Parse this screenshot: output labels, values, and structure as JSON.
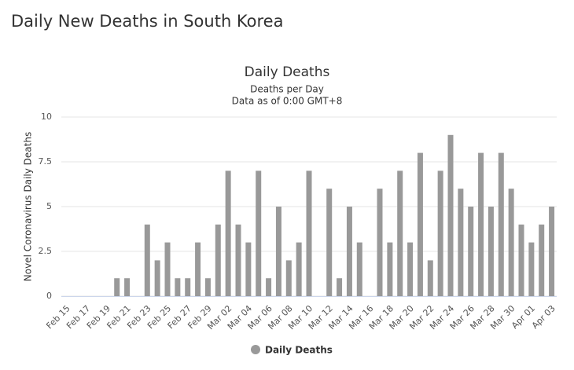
{
  "heading": "Daily New Deaths in South Korea",
  "chart_data": {
    "type": "bar",
    "title": "Daily Deaths",
    "subtitle": "Deaths per Day",
    "note": "Data as of 0:00 GMT+8",
    "y_label": "Novel Coronavirus Daily Deaths",
    "categories": [
      "Feb 15",
      null,
      "Feb 17",
      null,
      "Feb 19",
      null,
      "Feb 21",
      null,
      "Feb 23",
      null,
      "Feb 25",
      null,
      "Feb 27",
      null,
      "Feb 29",
      null,
      "Mar 02",
      null,
      "Mar 04",
      null,
      "Mar 06",
      null,
      "Mar 08",
      null,
      "Mar 10",
      null,
      "Mar 12",
      null,
      "Mar 14",
      null,
      "Mar 16",
      null,
      "Mar 18",
      null,
      "Mar 20",
      null,
      "Mar 22",
      null,
      "Mar 24",
      null,
      "Mar 26",
      null,
      "Mar 28",
      null,
      "Mar 30",
      null,
      "Apr 01",
      null,
      "Apr 03"
    ],
    "series": [
      {
        "name": "Daily Deaths",
        "color": "#999999",
        "values": [
          0,
          0,
          0,
          0,
          0,
          1,
          1,
          0,
          4,
          2,
          3,
          1,
          1,
          3,
          1,
          4,
          7,
          4,
          3,
          7,
          1,
          5,
          2,
          3,
          7,
          0,
          6,
          1,
          5,
          3,
          0,
          6,
          3,
          7,
          3,
          8,
          2,
          7,
          9,
          6,
          5,
          8,
          5,
          8,
          6,
          4,
          3,
          4,
          5
        ]
      }
    ],
    "ylim": [
      0,
      10
    ],
    "yticks": [
      0,
      2.5,
      5,
      7.5,
      10
    ],
    "grid": true,
    "legend": "bottom"
  }
}
